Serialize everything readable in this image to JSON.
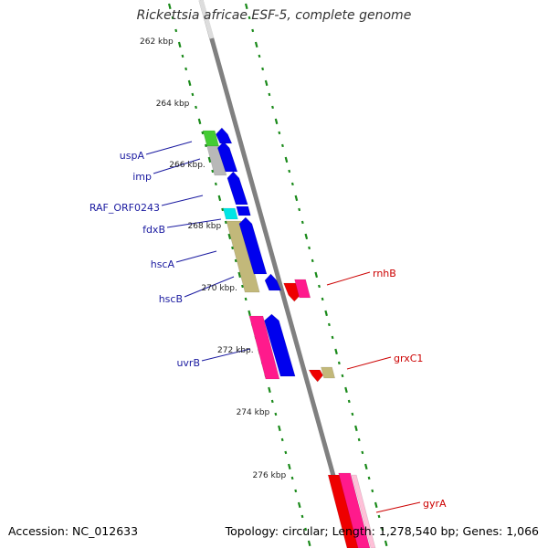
{
  "map": {
    "title": "Rickettsia africae ESF-5, complete genome",
    "accession": "Accession: NC_012633",
    "summary": "Topology: circular; Length: 1,278,540 bp; Genes: 1,066"
  },
  "ticks": [
    "262 kbp",
    "264 kbp",
    "266 kbp.",
    "268 kbp",
    "270 kbp.",
    "272 kbp.",
    "274 kbp",
    "276 kbp"
  ],
  "genes": {
    "left": [
      "uspA",
      "imp",
      "RAF_ORF0243",
      "fdxB",
      "hscA",
      "hscB",
      "uvrB"
    ],
    "right": [
      "rnhB",
      "grxC1",
      "gyrA"
    ]
  },
  "colors": {
    "backbone": "#808080",
    "tick": "#1a8a1a",
    "cds_forward": "#0000ee",
    "cds_reverse": "#ff1a8c",
    "rna": "#ee0000",
    "misc_green": "#44cc33",
    "misc_gray": "#b8b8b8",
    "misc_cyan": "#00e5e5",
    "misc_khaki": "#c2b87a",
    "label_left": "#1a1aa0",
    "label_right": "#cc0000"
  }
}
